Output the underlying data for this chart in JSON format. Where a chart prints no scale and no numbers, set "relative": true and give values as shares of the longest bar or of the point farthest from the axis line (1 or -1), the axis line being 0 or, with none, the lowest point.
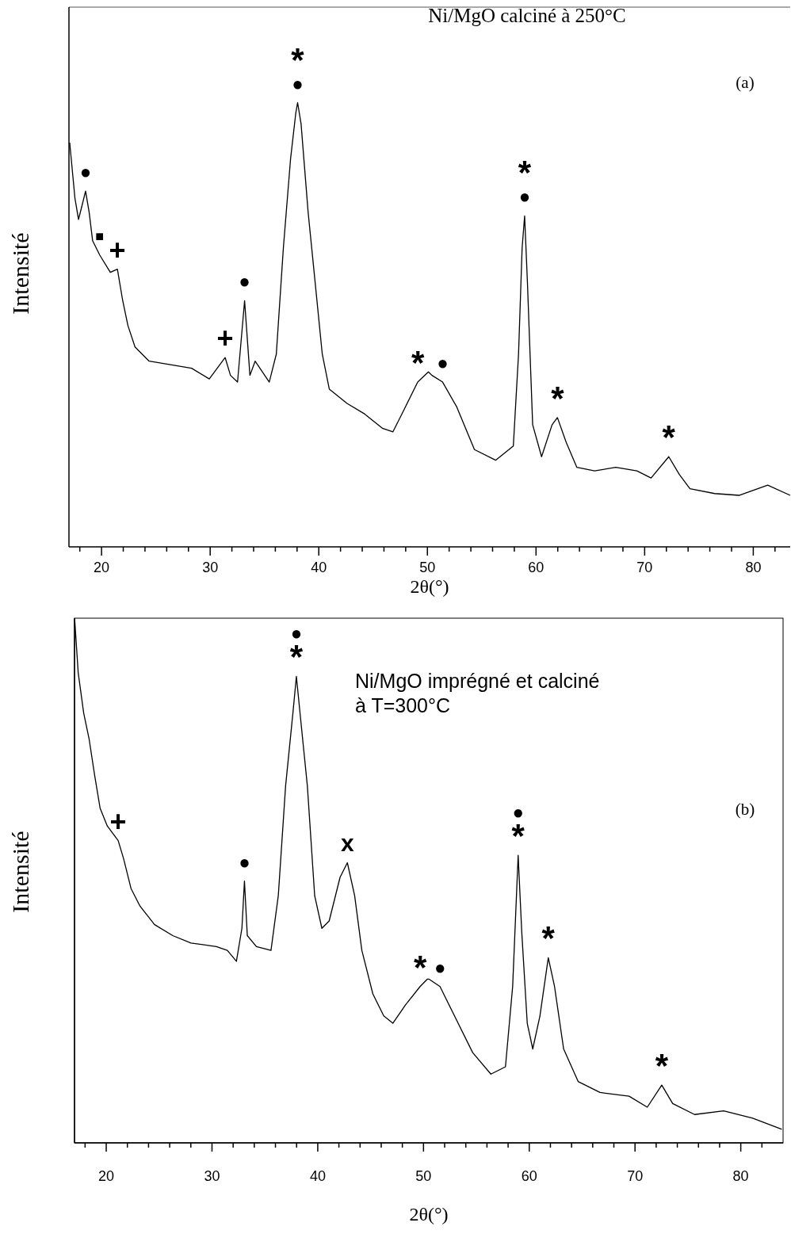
{
  "chart_data": [
    {
      "type": "line",
      "relative": true,
      "xlabel": "2θ(°)",
      "ylabel": "Intensité",
      "xlim": [
        17,
        83.4
      ],
      "xticks": [
        {
          "value": 18,
          "label": null
        },
        20,
        {
          "value": 22,
          "label": null
        },
        {
          "value": 24,
          "label": null
        },
        {
          "value": 26,
          "label": null
        },
        {
          "value": 28,
          "label": null
        },
        30,
        {
          "value": 32,
          "label": null
        },
        {
          "value": 34,
          "label": null
        },
        {
          "value": 36,
          "label": null
        },
        {
          "value": 38,
          "label": null
        },
        40,
        {
          "value": 42,
          "label": null
        },
        {
          "value": 44,
          "label": null
        },
        {
          "value": 46,
          "label": null
        },
        {
          "value": 48,
          "label": null
        },
        50,
        {
          "value": 52,
          "label": null
        },
        {
          "value": 54,
          "label": null
        },
        {
          "value": 56,
          "label": null
        },
        {
          "value": 58,
          "label": null
        },
        60,
        {
          "value": 62,
          "label": null
        },
        {
          "value": 64,
          "label": null
        },
        {
          "value": 66,
          "label": null
        },
        {
          "value": 68,
          "label": null
        },
        70,
        {
          "value": 72,
          "label": null
        },
        {
          "value": 74,
          "label": null
        },
        {
          "value": 76,
          "label": null
        },
        {
          "value": 78,
          "label": null
        },
        80,
        {
          "value": 82,
          "label": null
        }
      ],
      "x": [
        17.07,
        17.55,
        17.88,
        18.21,
        18.53,
        18.86,
        19.18,
        19.83,
        20.81,
        21.46,
        21.95,
        22.43,
        23.08,
        24.38,
        26.34,
        28.29,
        29.92,
        30.89,
        31.38,
        31.87,
        32.52,
        33.17,
        33.66,
        34.14,
        35.44,
        36.09,
        36.74,
        37.4,
        37.88,
        38.05,
        38.37,
        39.02,
        39.67,
        40.32,
        40.97,
        42.6,
        44.23,
        45.85,
        46.83,
        47.81,
        49.11,
        50.09,
        50.42,
        51.4,
        52.7,
        54.33,
        56.28,
        57.91,
        58.39,
        58.72,
        58.95,
        59.21,
        59.69,
        60.51,
        61.48,
        61.97,
        62.78,
        63.76,
        65.39,
        67.34,
        69.29,
        70.59,
        72.22,
        73.19,
        74.17,
        76.45,
        78.73,
        81.33,
        83.4
      ],
      "series": [
        {
          "color": "#000000",
          "values": [
            0.91,
            0.785,
            0.737,
            0.769,
            0.801,
            0.753,
            0.689,
            0.657,
            0.618,
            0.625,
            0.554,
            0.498,
            0.45,
            0.418,
            0.41,
            0.402,
            0.378,
            0.41,
            0.426,
            0.386,
            0.371,
            0.554,
            0.386,
            0.418,
            0.371,
            0.434,
            0.673,
            0.873,
            0.976,
            1,
            0.952,
            0.753,
            0.594,
            0.434,
            0.355,
            0.323,
            0.299,
            0.267,
            0.259,
            0.307,
            0.371,
            0.394,
            0.386,
            0.371,
            0.315,
            0.219,
            0.195,
            0.227,
            0.434,
            0.673,
            0.745,
            0.594,
            0.275,
            0.203,
            0.275,
            0.291,
            0.235,
            0.179,
            0.171,
            0.179,
            0.171,
            0.155,
            0.203,
            0.163,
            0.131,
            0.12,
            0.116,
            0.139,
            0.116
          ]
        }
      ],
      "annotations": [
        "Ni/MgO calciné à 250°C",
        "(a)",
        {
          "text": "●",
          "x": 18.53,
          "y": 0.801
        },
        {
          "text": "■",
          "x": 19.83,
          "y": 0.657
        },
        {
          "text": "+",
          "x": 21.46,
          "y": 0.625
        },
        {
          "text": "+",
          "x": 31.38,
          "y": 0.426
        },
        {
          "text": "●",
          "x": 33.17,
          "y": 0.554
        },
        {
          "text": "●",
          "x": 38.05,
          "y": 1
        },
        {
          "text": "*",
          "x": 38.05,
          "y": 1
        },
        {
          "text": "*",
          "x": 49.11,
          "y": 0.371
        },
        {
          "text": "●",
          "x": 51.4,
          "y": 0.371
        },
        {
          "text": "●",
          "x": 58.95,
          "y": 0.745
        },
        {
          "text": "*",
          "x": 58.95,
          "y": 0.745
        },
        {
          "text": "*",
          "x": 61.97,
          "y": 0.291
        },
        {
          "text": "*",
          "x": 72.22,
          "y": 0.203
        }
      ]
    },
    {
      "type": "line",
      "relative": true,
      "xlabel": "2θ(°)",
      "ylabel": "Intensité",
      "xlim": [
        17,
        84
      ],
      "xticks": [
        {
          "value": 18,
          "label": null
        },
        20,
        {
          "value": 22,
          "label": null
        },
        {
          "value": 24,
          "label": null
        },
        {
          "value": 26,
          "label": null
        },
        {
          "value": 28,
          "label": null
        },
        30,
        {
          "value": 32,
          "label": null
        },
        {
          "value": 34,
          "label": null
        },
        {
          "value": 36,
          "label": null
        },
        {
          "value": 38,
          "label": null
        },
        40,
        {
          "value": 42,
          "label": null
        },
        {
          "value": 44,
          "label": null
        },
        {
          "value": 46,
          "label": null
        },
        {
          "value": 48,
          "label": null
        },
        50,
        {
          "value": 52,
          "label": null
        },
        {
          "value": 54,
          "label": null
        },
        {
          "value": 56,
          "label": null
        },
        {
          "value": 58,
          "label": null
        },
        60,
        {
          "value": 62,
          "label": null
        },
        {
          "value": 64,
          "label": null
        },
        {
          "value": 66,
          "label": null
        },
        {
          "value": 68,
          "label": null
        },
        70,
        {
          "value": 72,
          "label": null
        },
        {
          "value": 74,
          "label": null
        },
        {
          "value": 76,
          "label": null
        },
        {
          "value": 78,
          "label": null
        },
        80,
        {
          "value": 82,
          "label": null
        }
      ],
      "x": [
        17.01,
        17.35,
        17.87,
        18.38,
        18.9,
        19.42,
        20.1,
        21.13,
        21.65,
        22.34,
        23.2,
        24.57,
        26.29,
        28.01,
        30.42,
        31.45,
        32.31,
        32.83,
        33.07,
        33.34,
        34.2,
        35.58,
        36.27,
        36.96,
        37.65,
        37.98,
        38.5,
        39.02,
        39.71,
        40.39,
        41.08,
        42.11,
        42.8,
        43.49,
        44.17,
        45.21,
        46.24,
        47.1,
        48.3,
        49.68,
        50.36,
        50.53,
        51.56,
        52.93,
        54.65,
        56.37,
        57.75,
        58.43,
        58.95,
        59.29,
        59.81,
        60.33,
        61.01,
        61.8,
        62.39,
        63.25,
        64.62,
        66.69,
        69.44,
        71.16,
        72.53,
        73.56,
        75.63,
        78.38,
        81.13,
        83.88
      ],
      "series": [
        {
          "color": "#000000",
          "values": [
            1,
            0.896,
            0.819,
            0.77,
            0.701,
            0.638,
            0.604,
            0.576,
            0.541,
            0.485,
            0.451,
            0.416,
            0.395,
            0.381,
            0.374,
            0.367,
            0.346,
            0.409,
            0.499,
            0.395,
            0.374,
            0.367,
            0.471,
            0.68,
            0.819,
            0.889,
            0.784,
            0.68,
            0.471,
            0.409,
            0.423,
            0.506,
            0.534,
            0.471,
            0.367,
            0.284,
            0.242,
            0.228,
            0.263,
            0.298,
            0.312,
            0.312,
            0.298,
            0.242,
            0.172,
            0.131,
            0.145,
            0.298,
            0.548,
            0.402,
            0.228,
            0.179,
            0.242,
            0.353,
            0.298,
            0.179,
            0.117,
            0.096,
            0.089,
            0.068,
            0.11,
            0.075,
            0.054,
            0.061,
            0.047,
            0.026
          ]
        }
      ],
      "annotations": [
        "Ni/MgO imprégné et calciné\nà T=300°C",
        "(b)",
        {
          "text": "+",
          "x": 21.13,
          "y": 0.576
        },
        {
          "text": "●",
          "x": 33.07,
          "y": 0.499
        },
        {
          "text": "*",
          "x": 37.98,
          "y": 0.889
        },
        {
          "text": "●",
          "x": 37.98,
          "y": 0.889
        },
        {
          "text": "x",
          "x": 42.8,
          "y": 0.534
        },
        {
          "text": "*",
          "x": 49.68,
          "y": 0.298
        },
        {
          "text": "●",
          "x": 51.56,
          "y": 0.298
        },
        {
          "text": "*",
          "x": 58.95,
          "y": 0.548
        },
        {
          "text": "●",
          "x": 58.95,
          "y": 0.548
        },
        {
          "text": "*",
          "x": 61.8,
          "y": 0.353
        },
        {
          "text": "*",
          "x": 72.53,
          "y": 0.11
        }
      ]
    }
  ]
}
